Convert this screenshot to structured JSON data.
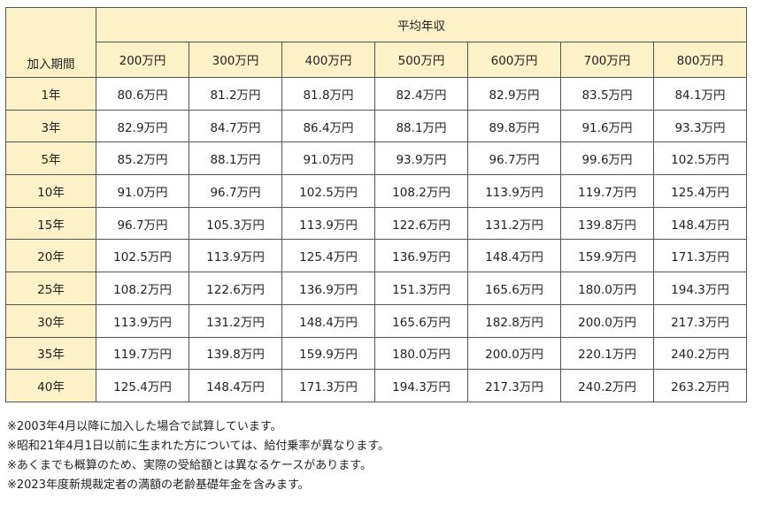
{
  "table": {
    "corner_label": "加入期間",
    "group_label": "平均年収",
    "salaries": [
      "200万円",
      "300万円",
      "400万円",
      "500万円",
      "600万円",
      "700万円",
      "800万円"
    ],
    "rows": [
      {
        "period": "1年",
        "values": [
          "80.6万円",
          "81.2万円",
          "81.8万円",
          "82.4万円",
          "82.9万円",
          "83.5万円",
          "84.1万円"
        ]
      },
      {
        "period": "3年",
        "values": [
          "82.9万円",
          "84.7万円",
          "86.4万円",
          "88.1万円",
          "89.8万円",
          "91.6万円",
          "93.3万円"
        ]
      },
      {
        "period": "5年",
        "values": [
          "85.2万円",
          "88.1万円",
          "91.0万円",
          "93.9万円",
          "96.7万円",
          "99.6万円",
          "102.5万円"
        ]
      },
      {
        "period": "10年",
        "values": [
          "91.0万円",
          "96.7万円",
          "102.5万円",
          "108.2万円",
          "113.9万円",
          "119.7万円",
          "125.4万円"
        ]
      },
      {
        "period": "15年",
        "values": [
          "96.7万円",
          "105.3万円",
          "113.9万円",
          "122.6万円",
          "131.2万円",
          "139.8万円",
          "148.4万円"
        ]
      },
      {
        "period": "20年",
        "values": [
          "102.5万円",
          "113.9万円",
          "125.4万円",
          "136.9万円",
          "148.4万円",
          "159.9万円",
          "171.3万円"
        ]
      },
      {
        "period": "25年",
        "values": [
          "108.2万円",
          "122.6万円",
          "136.9万円",
          "151.3万円",
          "165.6万円",
          "180.0万円",
          "194.3万円"
        ]
      },
      {
        "period": "30年",
        "values": [
          "113.9万円",
          "131.2万円",
          "148.4万円",
          "165.6万円",
          "182.8万円",
          "200.0万円",
          "217.3万円"
        ]
      },
      {
        "period": "35年",
        "values": [
          "119.7万円",
          "139.8万円",
          "159.9万円",
          "180.0万円",
          "200.0万円",
          "220.1万円",
          "240.2万円"
        ]
      },
      {
        "period": "40年",
        "values": [
          "125.4万円",
          "148.4万円",
          "171.3万円",
          "194.3万円",
          "217.3万円",
          "240.2万円",
          "263.2万円"
        ]
      }
    ]
  },
  "notes": [
    "※2003年4月以降に加入した場合で試算しています。",
    "※昭和21年4月1日以前に生まれた方については、給付乗率が異なります。",
    "※あくまでも概算のため、実際の受給額とは異なるケースがあります。",
    "※2023年度新規裁定者の満額の老齢基礎年金を含みます。"
  ],
  "colors": {
    "header_bg": "#fdf1c8",
    "border": "#555555"
  }
}
